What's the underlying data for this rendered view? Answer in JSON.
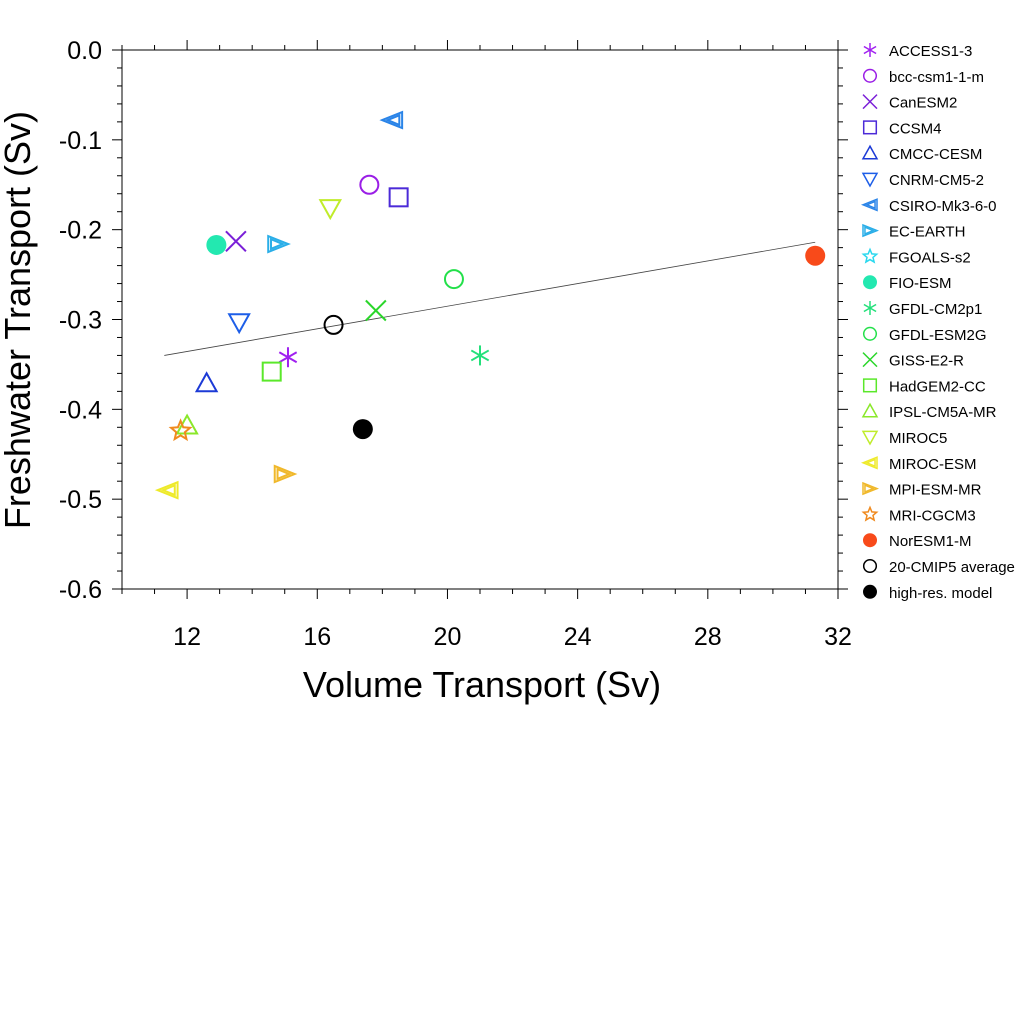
{
  "chart_data": {
    "type": "scatter",
    "title": "",
    "xlabel": "Volume Transport (Sv)",
    "ylabel": "Freshwater Transport (Sv)",
    "xlim": [
      10,
      32
    ],
    "ylim": [
      -0.6,
      0.0
    ],
    "xticks": [
      12,
      16,
      20,
      24,
      28,
      32
    ],
    "xtick_labels": [
      "12",
      "16",
      "20",
      "24",
      "28",
      "32"
    ],
    "yticks": [
      0.0,
      -0.1,
      -0.2,
      -0.3,
      -0.4,
      -0.5,
      -0.6
    ],
    "ytick_labels": [
      "0.0",
      "-0.1",
      "-0.2",
      "-0.3",
      "-0.4",
      "-0.5",
      "-0.6"
    ],
    "grid": false,
    "legend_position": "right",
    "regression_line": {
      "x": [
        11.3,
        31.3
      ],
      "y": [
        -0.34,
        -0.214
      ]
    },
    "series": [
      {
        "name": "ACCESS1-3",
        "x": 15.1,
        "y": -0.342,
        "marker": "asterisk",
        "color": "#a020f0"
      },
      {
        "name": "bcc-csm1-1-m",
        "x": 17.6,
        "y": -0.15,
        "marker": "circle",
        "color": "#9a1ee6"
      },
      {
        "name": "CanESM2",
        "x": 13.5,
        "y": -0.213,
        "marker": "x",
        "color": "#7a1fd8"
      },
      {
        "name": "CCSM4",
        "x": 18.5,
        "y": -0.164,
        "marker": "square",
        "color": "#4b2ad8"
      },
      {
        "name": "CMCC-CESM",
        "x": 12.6,
        "y": -0.371,
        "marker": "triangle-up",
        "color": "#1c3ad6"
      },
      {
        "name": "CNRM-CM5-2",
        "x": 13.6,
        "y": -0.303,
        "marker": "triangle-down",
        "color": "#1d5ee8"
      },
      {
        "name": "CSIRO-Mk3-6-0",
        "x": 18.3,
        "y": -0.078,
        "marker": "triangle-left",
        "color": "#2a84e8"
      },
      {
        "name": "EC-EARTH",
        "x": 14.8,
        "y": -0.216,
        "marker": "triangle-right",
        "color": "#2aaee8"
      },
      {
        "name": "FGOALS-s2",
        "x": null,
        "y": null,
        "marker": "star",
        "color": "#29d8ee"
      },
      {
        "name": "FIO-ESM",
        "x": 12.9,
        "y": -0.217,
        "marker": "filled-circle",
        "color": "#23e8b0"
      },
      {
        "name": "GFDL-CM2p1",
        "x": 21.0,
        "y": -0.34,
        "marker": "asterisk",
        "color": "#23e07a"
      },
      {
        "name": "GFDL-ESM2G",
        "x": 20.2,
        "y": -0.255,
        "marker": "circle",
        "color": "#23e04a"
      },
      {
        "name": "GISS-E2-R",
        "x": 17.8,
        "y": -0.29,
        "marker": "x",
        "color": "#2ad62a"
      },
      {
        "name": "HadGEM2-CC",
        "x": 14.6,
        "y": -0.358,
        "marker": "square",
        "color": "#5ae82a"
      },
      {
        "name": "IPSL-CM5A-MR",
        "x": 12.0,
        "y": -0.418,
        "marker": "triangle-up",
        "color": "#8ae82a"
      },
      {
        "name": "MIROC5",
        "x": 16.4,
        "y": -0.176,
        "marker": "triangle-down",
        "color": "#c0ec2a"
      },
      {
        "name": "MIROC-ESM",
        "x": 11.4,
        "y": -0.49,
        "marker": "triangle-left",
        "color": "#eeea2a"
      },
      {
        "name": "MPI-ESM-MR",
        "x": 15.0,
        "y": -0.472,
        "marker": "triangle-right",
        "color": "#f0b82a"
      },
      {
        "name": "MRI-CGCM3",
        "x": 11.8,
        "y": -0.424,
        "marker": "star",
        "color": "#f08a1f"
      },
      {
        "name": "NorESM1-M",
        "x": 31.3,
        "y": -0.229,
        "marker": "filled-circle",
        "color": "#f84a1a"
      },
      {
        "name": "20-CMIP5 average",
        "x": 16.5,
        "y": -0.306,
        "marker": "circle",
        "color": "#000000"
      },
      {
        "name": "high-res. model",
        "x": 17.4,
        "y": -0.422,
        "marker": "filled-circle",
        "color": "#000000"
      }
    ]
  }
}
